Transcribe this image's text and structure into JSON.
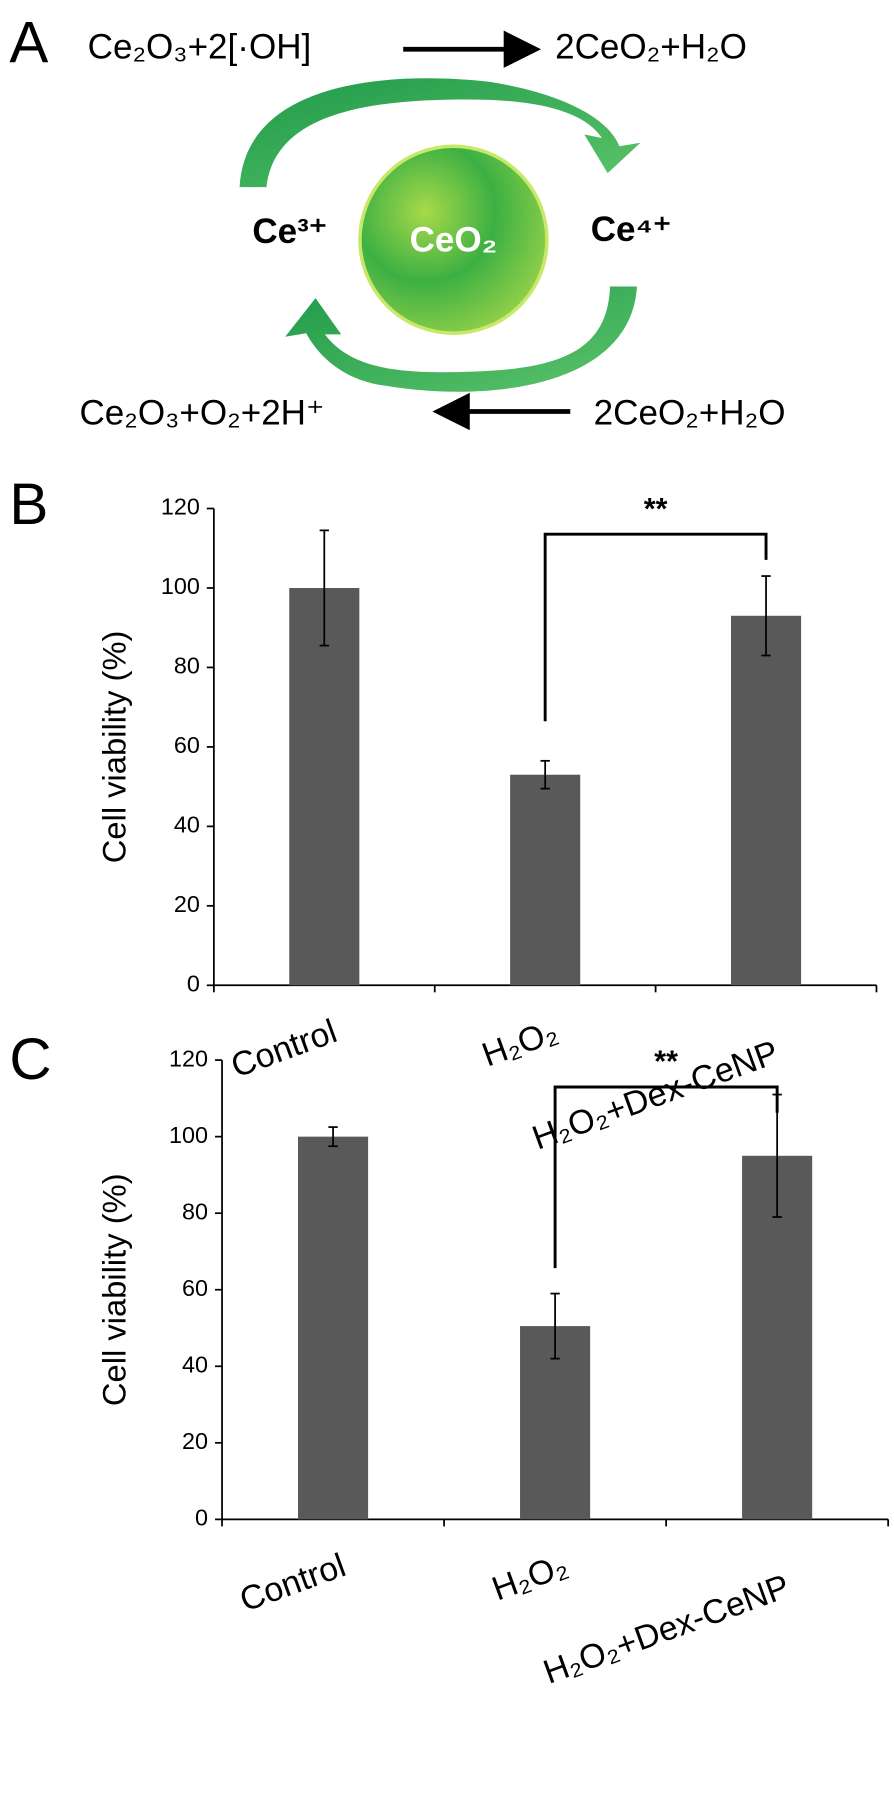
{
  "panel_labels": [
    "A",
    "B",
    "C"
  ],
  "diagram": {
    "top_left": "Ce₂O₃+2[·OH]",
    "top_right": "2CeO₂+H₂O",
    "left_ion": "Ce³⁺",
    "center": "CeO₂",
    "right_ion": "Ce⁴⁺",
    "bottom_left": "Ce₂O₃+O₂+2H⁺",
    "bottom_right": "2CeO₂+H₂O"
  },
  "chart_data": [
    {
      "type": "bar",
      "y_label": "Cell viability (%)",
      "categories": [
        "Control",
        "H₂O₂",
        "H₂O₂+Dex-CeNP"
      ],
      "values": [
        100,
        53,
        93
      ],
      "errors": [
        14.5,
        3.5,
        10
      ],
      "color": "#595959",
      "ylim": [
        0,
        120
      ],
      "yticks": [
        0,
        20,
        40,
        60,
        80,
        100,
        120
      ],
      "annotation": "**"
    },
    {
      "type": "bar",
      "y_label": "Cell viability (%)",
      "categories": [
        "Control",
        "H₂O₂",
        "H₂O₂+Dex-CeNP"
      ],
      "values": [
        100,
        50.5,
        95
      ],
      "errors": [
        2.5,
        8.5,
        16
      ],
      "color": "#595959",
      "ylim": [
        0,
        120
      ],
      "yticks": [
        0,
        20,
        40,
        60,
        80,
        100,
        120
      ],
      "annotation": "**"
    }
  ]
}
